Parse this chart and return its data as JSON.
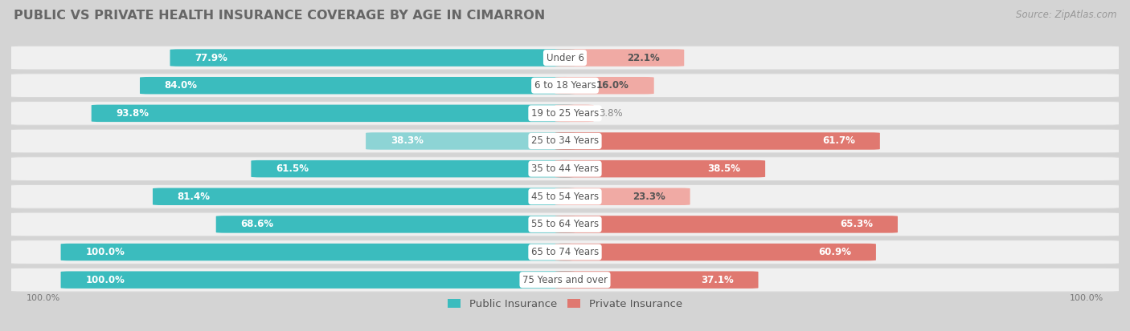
{
  "title": "PUBLIC VS PRIVATE HEALTH INSURANCE COVERAGE BY AGE IN CIMARRON",
  "source": "Source: ZipAtlas.com",
  "categories": [
    "Under 6",
    "6 to 18 Years",
    "19 to 25 Years",
    "25 to 34 Years",
    "35 to 44 Years",
    "45 to 54 Years",
    "55 to 64 Years",
    "65 to 74 Years",
    "75 Years and over"
  ],
  "public_values": [
    77.9,
    84.0,
    93.8,
    38.3,
    61.5,
    81.4,
    68.6,
    100.0,
    100.0
  ],
  "private_values": [
    22.1,
    16.0,
    3.8,
    61.7,
    38.5,
    23.3,
    65.3,
    60.9,
    37.1
  ],
  "public_color_dark": "#3bbcbe",
  "public_color_light": "#8dd4d5",
  "private_color_dark": "#e07870",
  "private_color_light": "#f0aaa4",
  "row_bg_color": "#f0f0f0",
  "row_border_color": "#d8d8d8",
  "outer_bg": "#d4d4d4",
  "title_color": "#666666",
  "label_color": "#555555",
  "value_color_white": "#ffffff",
  "value_color_dark": "#888888",
  "title_fontsize": 11.5,
  "bar_label_fontsize": 8.5,
  "cat_label_fontsize": 8.5,
  "source_fontsize": 8.5,
  "legend_fontsize": 9.5,
  "max_value": 100.0,
  "pub_dark_threshold": 55,
  "priv_dark_threshold": 35
}
